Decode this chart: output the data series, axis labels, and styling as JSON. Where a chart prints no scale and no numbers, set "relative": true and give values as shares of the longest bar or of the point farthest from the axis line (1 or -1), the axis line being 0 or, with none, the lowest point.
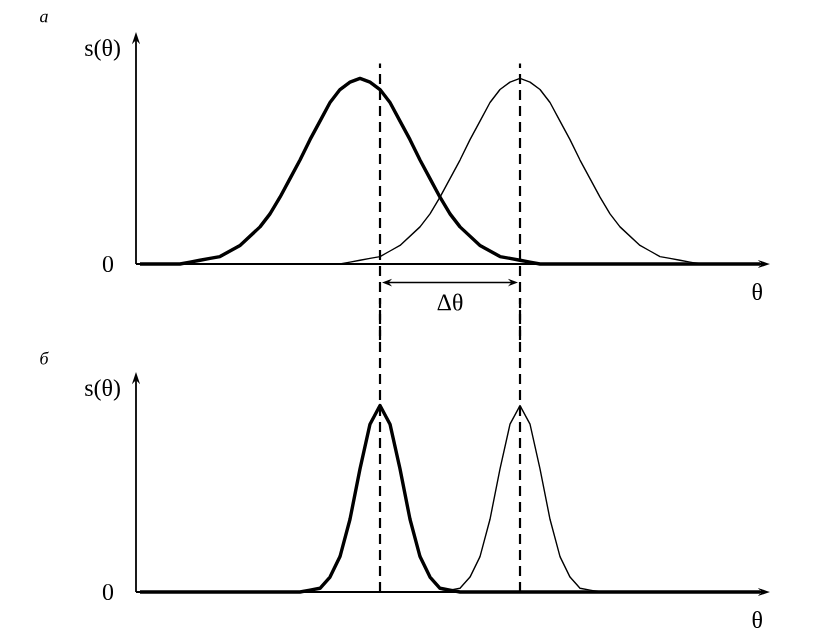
{
  "chart_data": [
    {
      "type": "line",
      "title": "а",
      "ylabel": "s(θ)",
      "xlabel": "θ",
      "relative": true,
      "marker": "none",
      "categories": [
        null,
        null,
        null,
        null,
        null,
        null,
        null,
        null,
        null,
        null,
        null,
        null,
        null,
        null,
        null,
        null,
        null,
        null,
        null,
        null,
        null,
        null,
        null,
        null,
        null,
        null,
        null,
        null,
        null,
        null,
        null,
        null,
        null,
        null,
        null,
        null,
        null,
        null,
        null,
        null,
        null,
        null,
        null,
        null,
        null,
        null,
        null,
        null,
        null,
        null,
        null,
        null,
        null,
        null,
        null,
        null,
        null,
        null,
        null,
        null,
        null,
        null,
        null
      ],
      "series": [
        {
          "color": "#000000",
          "values": [
            0,
            0,
            0,
            0,
            0,
            0.01,
            0.02,
            0.03,
            0.04,
            0.07,
            0.1,
            0.15,
            0.2,
            0.27,
            0.36,
            0.46,
            0.56,
            0.67,
            0.77,
            0.87,
            0.94,
            0.98,
            1,
            0.98,
            0.94,
            0.87,
            0.77,
            0.67,
            0.56,
            0.46,
            0.36,
            0.27,
            0.2,
            0.15,
            0.1,
            0.07,
            0.04,
            0.03,
            0.02,
            0.01,
            0,
            0,
            0,
            0,
            0,
            0,
            0,
            0,
            0,
            0,
            0,
            0,
            0,
            0,
            0,
            0,
            0,
            0,
            0,
            0,
            0,
            0,
            0
          ]
        },
        {
          "color": "#000000",
          "values": [
            0,
            0,
            0,
            0,
            0,
            0,
            0,
            0,
            0,
            0,
            0,
            0,
            0,
            0,
            0,
            0,
            0,
            0,
            0,
            0,
            0,
            0.01,
            0.02,
            0.03,
            0.04,
            0.07,
            0.1,
            0.15,
            0.2,
            0.27,
            0.36,
            0.46,
            0.56,
            0.67,
            0.77,
            0.87,
            0.94,
            0.98,
            1,
            0.98,
            0.94,
            0.87,
            0.77,
            0.67,
            0.56,
            0.46,
            0.36,
            0.27,
            0.2,
            0.15,
            0.1,
            0.07,
            0.04,
            0.03,
            0.02,
            0.01,
            0,
            0,
            0,
            0,
            0,
            0,
            0
          ]
        }
      ],
      "annotations": [
        "0",
        "Δθ"
      ]
    },
    {
      "type": "line",
      "title": "б",
      "ylabel": "s(θ)",
      "xlabel": "θ",
      "relative": true,
      "marker": "none",
      "categories": [
        null,
        null,
        null,
        null,
        null,
        null,
        null,
        null,
        null,
        null,
        null,
        null,
        null,
        null,
        null,
        null,
        null,
        null,
        null,
        null,
        null,
        null,
        null,
        null,
        null,
        null,
        null,
        null,
        null,
        null,
        null,
        null,
        null,
        null,
        null,
        null,
        null,
        null,
        null,
        null,
        null,
        null,
        null,
        null,
        null,
        null,
        null,
        null,
        null,
        null,
        null,
        null,
        null,
        null,
        null,
        null,
        null,
        null,
        null,
        null,
        null,
        null,
        null
      ],
      "series": [
        {
          "color": "#000000",
          "values": [
            0,
            0,
            0,
            0,
            0,
            0,
            0,
            0,
            0,
            0,
            0,
            0,
            0,
            0,
            0,
            0,
            0,
            0.01,
            0.02,
            0.08,
            0.19,
            0.39,
            0.66,
            0.9,
            1,
            0.9,
            0.66,
            0.39,
            0.19,
            0.08,
            0.02,
            0.01,
            0,
            0,
            0,
            0,
            0,
            0,
            0,
            0,
            0,
            0,
            0,
            0,
            0,
            0,
            0,
            0,
            0,
            0,
            0,
            0,
            0,
            0,
            0,
            0,
            0,
            0,
            0,
            0,
            0,
            0,
            0
          ]
        },
        {
          "color": "#000000",
          "values": [
            0,
            0,
            0,
            0,
            0,
            0,
            0,
            0,
            0,
            0,
            0,
            0,
            0,
            0,
            0,
            0,
            0,
            0,
            0,
            0,
            0,
            0,
            0,
            0,
            0,
            0,
            0,
            0,
            0,
            0,
            0,
            0.01,
            0.02,
            0.08,
            0.19,
            0.39,
            0.66,
            0.9,
            1,
            0.9,
            0.66,
            0.39,
            0.19,
            0.08,
            0.02,
            0.01,
            0,
            0,
            0,
            0,
            0,
            0,
            0,
            0,
            0,
            0,
            0,
            0,
            0,
            0,
            0,
            0,
            0
          ]
        }
      ],
      "annotations": [
        "0"
      ]
    }
  ]
}
